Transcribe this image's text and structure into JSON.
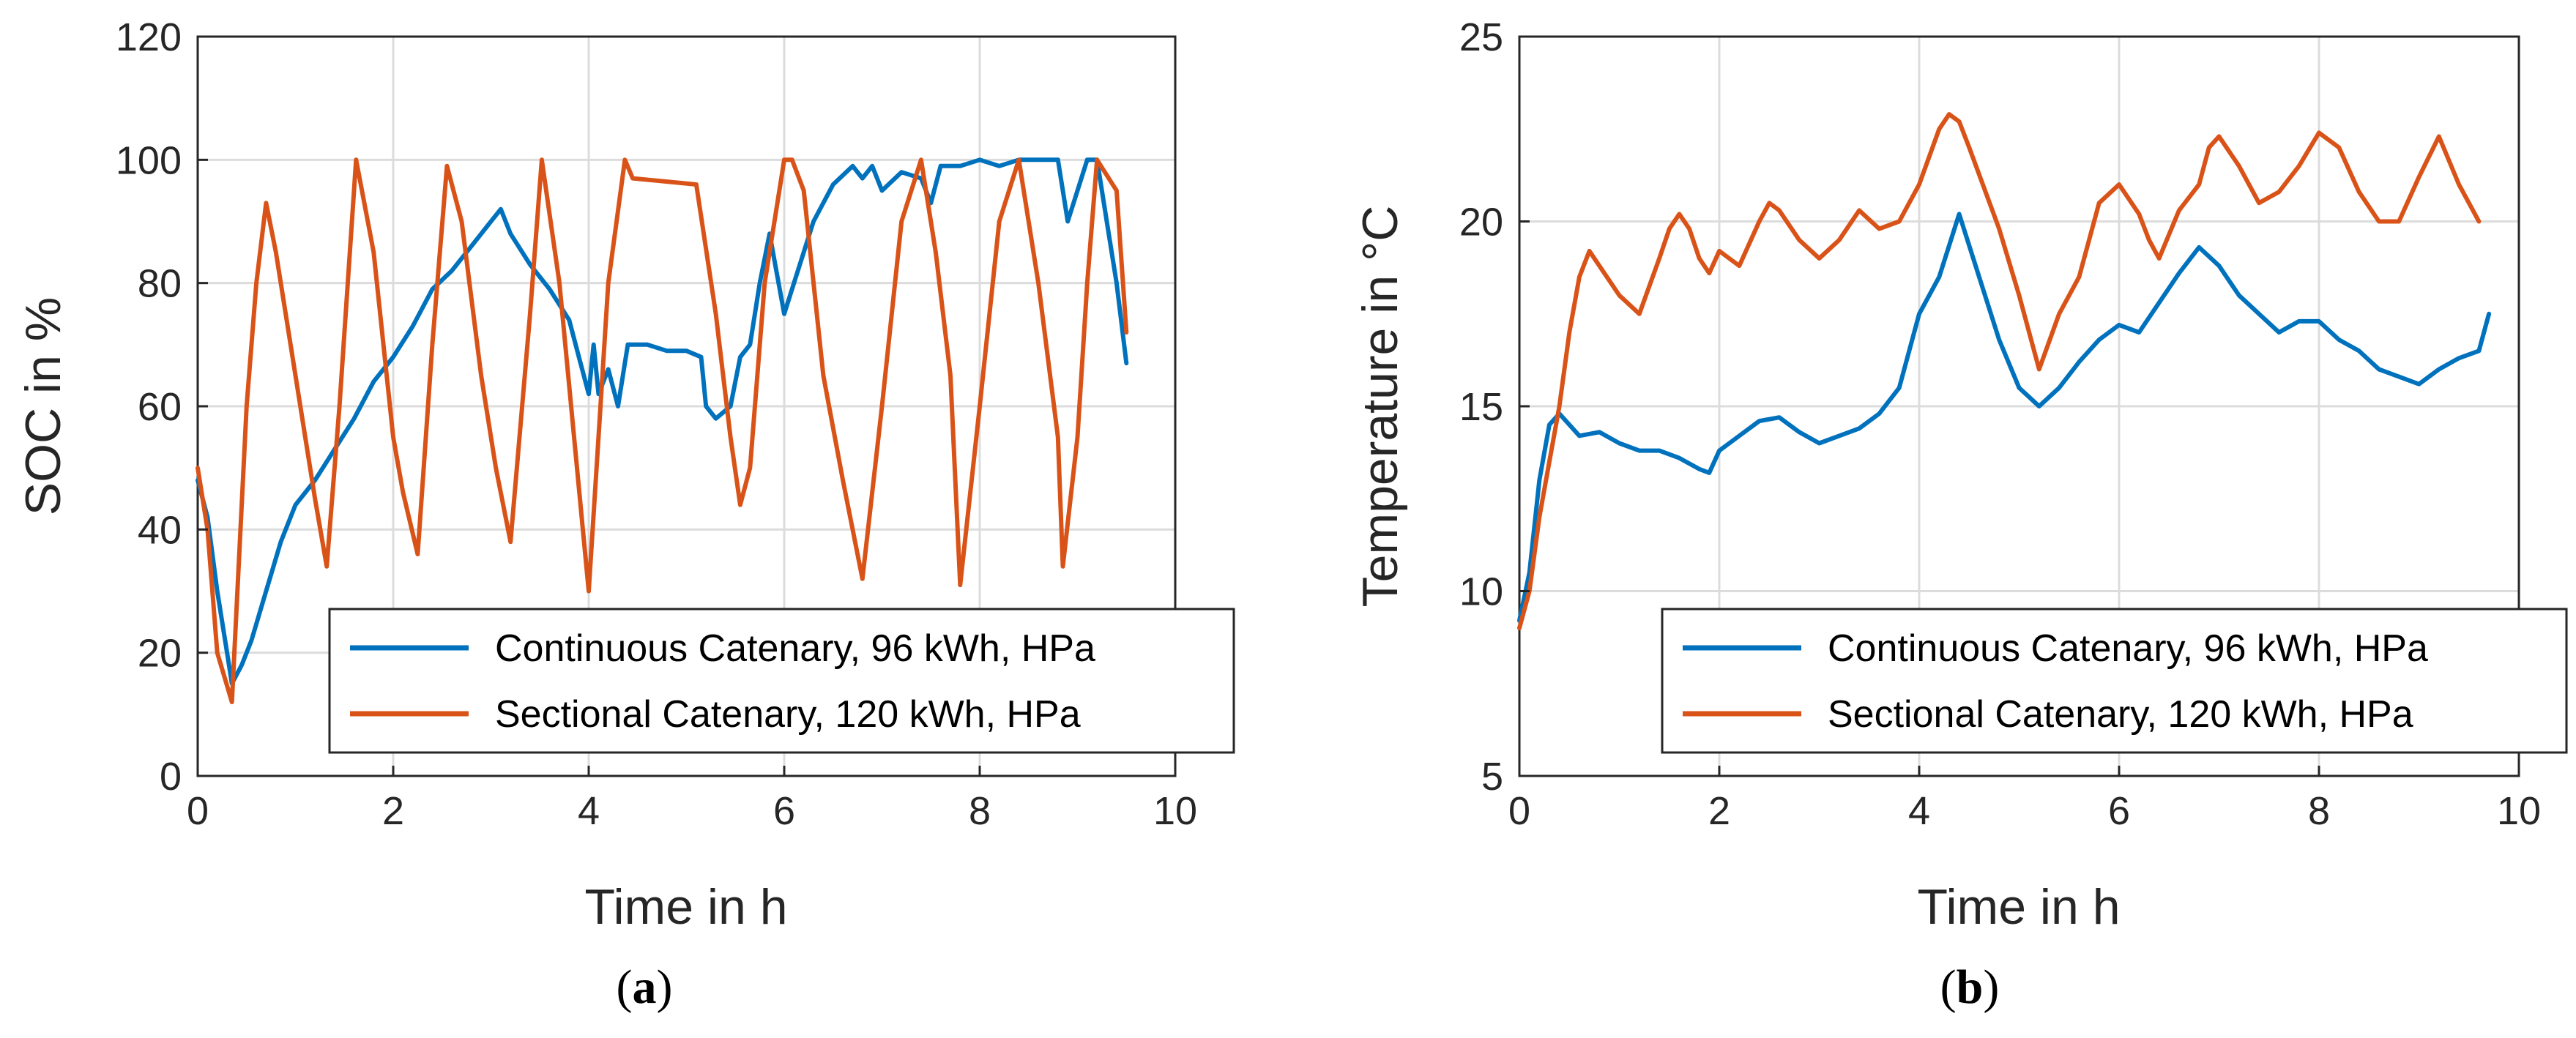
{
  "chart_data": [
    {
      "id": "a",
      "type": "line",
      "panel_label": "a",
      "xlabel": "Time in h",
      "ylabel": "SOC in %",
      "xlim": [
        0,
        10
      ],
      "ylim": [
        0,
        120
      ],
      "xticks": [
        0,
        2,
        4,
        6,
        8,
        10
      ],
      "yticks": [
        0,
        20,
        40,
        60,
        80,
        100,
        120
      ],
      "grid": true,
      "legend_location": "bottom-right",
      "series": [
        {
          "name": "Continuous Catenary, 96 kWh, HPa",
          "color": "#0072BD",
          "x": [
            0,
            0.1,
            0.2,
            0.3,
            0.35,
            0.45,
            0.55,
            0.7,
            0.85,
            1.0,
            1.2,
            1.4,
            1.6,
            1.8,
            2.0,
            2.2,
            2.4,
            2.6,
            2.8,
            3.0,
            3.1,
            3.2,
            3.4,
            3.6,
            3.8,
            3.9,
            4.0,
            4.05,
            4.1,
            4.2,
            4.3,
            4.4,
            4.5,
            4.6,
            4.8,
            5.0,
            5.15,
            5.2,
            5.3,
            5.45,
            5.55,
            5.65,
            5.75,
            5.85,
            6.0,
            6.1,
            6.3,
            6.5,
            6.7,
            6.8,
            6.9,
            7.0,
            7.2,
            7.4,
            7.5,
            7.6,
            7.8,
            8.0,
            8.2,
            8.4,
            8.6,
            8.8,
            8.9,
            9.0,
            9.1,
            9.2,
            9.3,
            9.4,
            9.5
          ],
          "y": [
            48,
            42,
            30,
            20,
            15,
            18,
            22,
            30,
            38,
            44,
            48,
            53,
            58,
            64,
            68,
            73,
            79,
            82,
            86,
            90,
            92,
            88,
            83,
            79,
            74,
            68,
            62,
            70,
            62,
            66,
            60,
            70,
            70,
            70,
            69,
            69,
            68,
            60,
            58,
            60,
            68,
            70,
            80,
            88,
            75,
            80,
            90,
            96,
            99,
            97,
            99,
            95,
            98,
            97,
            93,
            99,
            99,
            100,
            99,
            100,
            100,
            100,
            90,
            95,
            100,
            100,
            90,
            80,
            67
          ]
        },
        {
          "name": "Sectional Catenary, 120 kWh, HPa",
          "color": "#D95319",
          "x": [
            0,
            0.1,
            0.2,
            0.35,
            0.5,
            0.6,
            0.7,
            0.8,
            1.0,
            1.2,
            1.32,
            1.45,
            1.62,
            1.8,
            2.0,
            2.1,
            2.25,
            2.4,
            2.55,
            2.7,
            2.9,
            3.05,
            3.2,
            3.4,
            3.52,
            3.7,
            3.85,
            4.0,
            4.1,
            4.2,
            4.37,
            4.45,
            5.1,
            5.3,
            5.45,
            5.55,
            5.65,
            5.8,
            6.0,
            6.08,
            6.2,
            6.4,
            6.6,
            6.8,
            7.0,
            7.2,
            7.4,
            7.55,
            7.7,
            7.8,
            8.0,
            8.2,
            8.4,
            8.6,
            8.8,
            8.85,
            9.0,
            9.1,
            9.2,
            9.4,
            9.5
          ],
          "y": [
            50,
            40,
            20,
            12,
            60,
            80,
            93,
            85,
            65,
            45,
            34,
            60,
            100,
            85,
            55,
            46,
            36,
            70,
            99,
            90,
            65,
            50,
            38,
            75,
            100,
            80,
            55,
            30,
            55,
            80,
            100,
            97,
            96,
            75,
            55,
            44,
            50,
            80,
            100,
            100,
            95,
            65,
            48,
            32,
            60,
            90,
            100,
            85,
            65,
            31,
            60,
            90,
            100,
            80,
            55,
            34,
            55,
            80,
            100,
            95,
            72
          ]
        }
      ]
    },
    {
      "id": "b",
      "type": "line",
      "panel_label": "b",
      "xlabel": "Time in h",
      "ylabel": "Temperature in °C",
      "xlim": [
        0,
        10
      ],
      "ylim": [
        5,
        25
      ],
      "xticks": [
        0,
        2,
        4,
        6,
        8,
        10
      ],
      "yticks": [
        5,
        10,
        15,
        20,
        25
      ],
      "grid": true,
      "legend_location": "bottom-right",
      "series": [
        {
          "name": "Continuous Catenary, 96 kWh, HPa",
          "color": "#0072BD",
          "x": [
            0,
            0.1,
            0.2,
            0.3,
            0.4,
            0.5,
            0.6,
            0.8,
            1.0,
            1.2,
            1.4,
            1.6,
            1.8,
            1.9,
            2.0,
            2.2,
            2.4,
            2.6,
            2.8,
            3.0,
            3.2,
            3.4,
            3.6,
            3.8,
            4.0,
            4.2,
            4.4,
            4.6,
            4.8,
            5.0,
            5.2,
            5.4,
            5.6,
            5.8,
            6.0,
            6.2,
            6.4,
            6.6,
            6.8,
            7.0,
            7.2,
            7.4,
            7.6,
            7.8,
            8.0,
            8.2,
            8.4,
            8.6,
            8.8,
            9.0,
            9.2,
            9.4,
            9.6,
            9.7
          ],
          "y": [
            9.2,
            10.5,
            13,
            14.5,
            14.8,
            14.5,
            14.2,
            14.3,
            14.0,
            13.8,
            13.8,
            13.6,
            13.3,
            13.2,
            13.8,
            14.2,
            14.6,
            14.7,
            14.3,
            14.0,
            14.2,
            14.4,
            14.8,
            15.5,
            17.5,
            18.5,
            20.2,
            18.5,
            16.8,
            15.5,
            15.0,
            15.5,
            16.2,
            16.8,
            17.2,
            17.0,
            17.8,
            18.6,
            19.3,
            18.8,
            18.0,
            17.5,
            17.0,
            17.3,
            17.3,
            16.8,
            16.5,
            16.0,
            15.8,
            15.6,
            16.0,
            16.3,
            16.5,
            17.5
          ]
        },
        {
          "name": "Sectional Catenary, 120 kWh, HPa",
          "color": "#D95319",
          "x": [
            0,
            0.1,
            0.2,
            0.3,
            0.4,
            0.5,
            0.6,
            0.7,
            0.8,
            1.0,
            1.2,
            1.4,
            1.5,
            1.6,
            1.7,
            1.8,
            1.9,
            2.0,
            2.2,
            2.4,
            2.5,
            2.6,
            2.8,
            3.0,
            3.2,
            3.4,
            3.6,
            3.8,
            4.0,
            4.2,
            4.3,
            4.4,
            4.5,
            4.8,
            5.0,
            5.2,
            5.4,
            5.6,
            5.8,
            6.0,
            6.2,
            6.3,
            6.4,
            6.6,
            6.8,
            6.9,
            7.0,
            7.2,
            7.4,
            7.6,
            7.8,
            8.0,
            8.2,
            8.4,
            8.6,
            8.8,
            9.0,
            9.2,
            9.4,
            9.6
          ],
          "y": [
            9.0,
            10,
            12,
            13.5,
            15,
            17,
            18.5,
            19.2,
            18.8,
            18.0,
            17.5,
            19.0,
            19.8,
            20.2,
            19.8,
            19.0,
            18.6,
            19.2,
            18.8,
            20.0,
            20.5,
            20.3,
            19.5,
            19.0,
            19.5,
            20.3,
            19.8,
            20.0,
            21.0,
            22.5,
            22.9,
            22.7,
            22.0,
            19.8,
            18.0,
            16.0,
            17.5,
            18.5,
            20.5,
            21.0,
            20.2,
            19.5,
            19.0,
            20.3,
            21.0,
            22.0,
            22.3,
            21.5,
            20.5,
            20.8,
            21.5,
            22.4,
            22.0,
            20.8,
            20.0,
            20.0,
            21.2,
            22.3,
            21.0,
            20.0
          ]
        }
      ]
    }
  ]
}
